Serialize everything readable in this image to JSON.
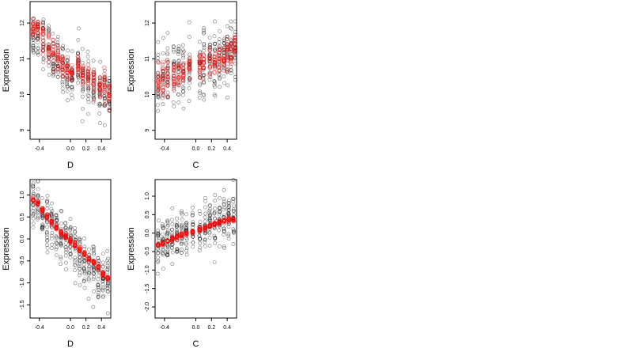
{
  "chart_data": [
    {
      "type": "scatter",
      "xlabel": "D",
      "ylabel": "Expression",
      "xlim": [
        -0.52,
        0.52
      ],
      "ylim": [
        8.75,
        12.6
      ],
      "xticks": [
        -0.4,
        0.0,
        0.2,
        0.4
      ],
      "xtick_labels": [
        "-0.4",
        "0.0",
        "0.2",
        "0.4"
      ],
      "yticks": [
        9,
        10,
        11,
        12
      ],
      "ytick_labels": [
        "9",
        "10",
        "11",
        "12"
      ],
      "x_positions": [
        -0.48,
        -0.42,
        -0.35,
        -0.28,
        -0.22,
        -0.16,
        -0.1,
        -0.04,
        0.02,
        0.1,
        0.16,
        0.23,
        0.3,
        0.38,
        0.44,
        0.5
      ],
      "observed_center": [
        11.7,
        11.7,
        11.5,
        11.3,
        11.0,
        10.9,
        10.8,
        10.6,
        10.5,
        10.9,
        10.4,
        10.3,
        10.2,
        10.0,
        10.1,
        9.9
      ],
      "observed_spread": 0.55,
      "fitted": [
        11.85,
        11.8,
        11.55,
        11.3,
        11.1,
        10.95,
        10.85,
        10.7,
        10.6,
        10.85,
        10.55,
        10.45,
        10.35,
        10.2,
        10.2,
        10.0
      ],
      "fitted_spread": 0.3,
      "grid": false,
      "series": [
        {
          "name": "",
          "color": "#000000",
          "marker": "open-circle"
        },
        {
          "name": "",
          "color": "#ff0000",
          "marker": "open-circle"
        }
      ]
    },
    {
      "type": "scatter",
      "xlabel": "C",
      "ylabel": "Expression",
      "xlim": [
        -0.52,
        0.52
      ],
      "ylim": [
        8.75,
        12.6
      ],
      "xticks": [
        -0.4,
        0.0,
        0.2,
        0.4
      ],
      "xtick_labels": [
        "-0.4",
        "0.0",
        "0.2",
        "0.4"
      ],
      "yticks": [
        9,
        10,
        11,
        12
      ],
      "ytick_labels": [
        "9",
        "10",
        "11",
        "12"
      ],
      "x_positions": [
        -0.48,
        -0.42,
        -0.36,
        -0.28,
        -0.22,
        -0.16,
        -0.08,
        0.05,
        0.1,
        0.18,
        0.24,
        0.3,
        0.36,
        0.4,
        0.45,
        0.5
      ],
      "observed_center": [
        10.4,
        10.5,
        10.6,
        10.6,
        10.6,
        10.7,
        10.6,
        10.8,
        10.8,
        10.9,
        10.9,
        11.0,
        11.1,
        11.2,
        11.2,
        11.3
      ],
      "observed_spread": 0.75,
      "fitted": [
        10.4,
        10.45,
        10.5,
        10.55,
        10.55,
        10.6,
        10.65,
        10.75,
        10.8,
        10.85,
        10.9,
        11.0,
        11.05,
        11.1,
        11.2,
        11.3
      ],
      "fitted_spread": 0.35,
      "grid": false,
      "series": [
        {
          "name": "",
          "color": "#000000",
          "marker": "open-circle"
        },
        {
          "name": "",
          "color": "#ff0000",
          "marker": "open-circle"
        }
      ]
    },
    {
      "type": "scatter",
      "xlabel": "D",
      "ylabel": "Expression",
      "xlim": [
        -0.52,
        0.52
      ],
      "ylim": [
        -1.8,
        1.35
      ],
      "xticks": [
        -0.4,
        0.0,
        0.2,
        0.4
      ],
      "xtick_labels": [
        "-0.4",
        "0.0",
        "0.2",
        "0.4"
      ],
      "yticks": [
        -1.5,
        -1.0,
        -0.5,
        0.0,
        0.5,
        1.0
      ],
      "ytick_labels": [
        "-1.5",
        "-1.0",
        "-0.5",
        "0.0",
        "0.5",
        "1.0"
      ],
      "x_positions": [
        -0.48,
        -0.42,
        -0.36,
        -0.3,
        -0.24,
        -0.18,
        -0.12,
        -0.06,
        0.0,
        0.06,
        0.12,
        0.18,
        0.24,
        0.3,
        0.36,
        0.42,
        0.48
      ],
      "observed_center": [
        0.75,
        0.7,
        0.55,
        0.4,
        0.3,
        0.2,
        0.05,
        -0.05,
        -0.15,
        -0.3,
        -0.45,
        -0.55,
        -0.6,
        -0.65,
        -0.75,
        -0.85,
        -0.9
      ],
      "observed_spread": 0.45,
      "fitted": [
        0.9,
        0.8,
        0.65,
        0.5,
        0.38,
        0.28,
        0.15,
        0.05,
        -0.02,
        -0.12,
        -0.25,
        -0.35,
        -0.45,
        -0.55,
        -0.65,
        -0.8,
        -0.9
      ],
      "fitted_spread": 0.05,
      "grid": false,
      "series": [
        {
          "name": "",
          "color": "#000000",
          "marker": "open-circle"
        },
        {
          "name": "",
          "color": "#ff0000",
          "marker": "open-circle"
        }
      ]
    },
    {
      "type": "scatter",
      "xlabel": "C",
      "ylabel": "Expression",
      "xlim": [
        -0.52,
        0.52
      ],
      "ylim": [
        -2.3,
        1.45
      ],
      "xticks": [
        -0.4,
        0.0,
        0.2,
        0.4
      ],
      "xtick_labels": [
        "-0.4",
        "0.0",
        "0.2",
        "0.4"
      ],
      "yticks": [
        -2.0,
        -1.5,
        -1.0,
        -0.5,
        0.0,
        0.5,
        1.0
      ],
      "ytick_labels": [
        "-2.0",
        "-1.5",
        "-1.0",
        "-0.5",
        "0.0",
        "0.5",
        "1.0"
      ],
      "x_positions": [
        -0.48,
        -0.42,
        -0.36,
        -0.3,
        -0.24,
        -0.18,
        -0.12,
        -0.04,
        0.05,
        0.12,
        0.18,
        0.24,
        0.3,
        0.36,
        0.42,
        0.48
      ],
      "observed_center": [
        -0.3,
        -0.2,
        -0.2,
        -0.15,
        -0.1,
        -0.05,
        0.0,
        0.0,
        0.1,
        0.15,
        0.15,
        0.2,
        0.25,
        0.3,
        0.35,
        0.4
      ],
      "observed_spread": 0.55,
      "fitted": [
        -0.32,
        -0.28,
        -0.22,
        -0.16,
        -0.1,
        -0.05,
        0.0,
        0.02,
        0.1,
        0.15,
        0.2,
        0.25,
        0.3,
        0.33,
        0.36,
        0.38
      ],
      "fitted_spread": 0.04,
      "grid": false,
      "series": [
        {
          "name": "",
          "color": "#000000",
          "marker": "open-circle"
        },
        {
          "name": "",
          "color": "#ff0000",
          "marker": "open-circle"
        }
      ]
    }
  ]
}
